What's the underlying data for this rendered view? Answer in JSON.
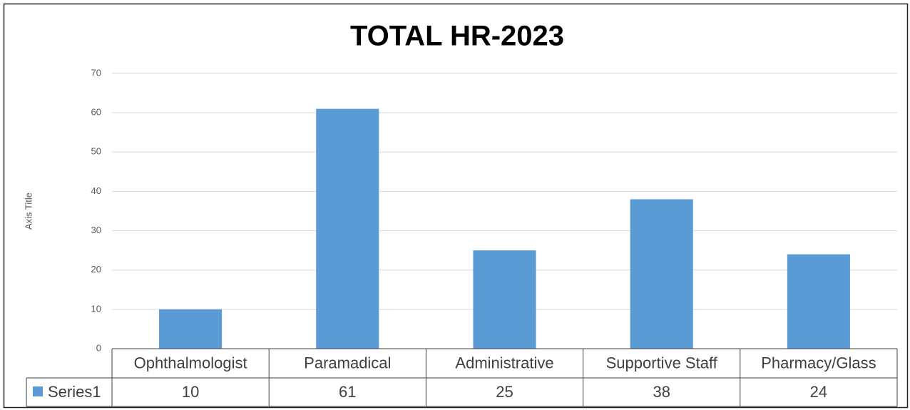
{
  "chart_data": {
    "type": "bar",
    "title": "TOTAL HR-2023",
    "y_label": "Axis Title",
    "categories": [
      "Ophthalmologist",
      "Paramadical",
      "Administrative",
      "Supportive Staff",
      "Pharmacy/Glass"
    ],
    "series": [
      {
        "name": "Series1",
        "color": "#5b9bd5",
        "values": [
          10,
          61,
          25,
          38,
          24
        ]
      }
    ],
    "ylim": [
      0,
      70
    ],
    "yticks": [
      0,
      10,
      20,
      30,
      40,
      50,
      60,
      70
    ],
    "grid": true,
    "data_table": true
  }
}
